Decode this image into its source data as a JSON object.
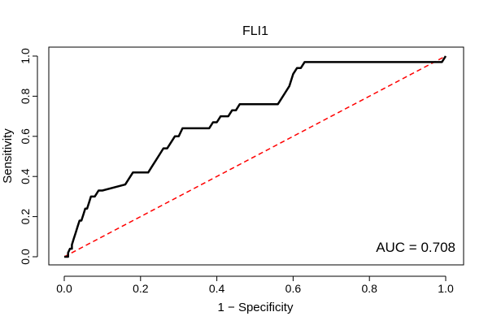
{
  "chart_data": {
    "type": "line",
    "title": "FLI1",
    "xlabel": "1 − Specificity",
    "ylabel": "Sensitivity",
    "xlim": [
      0,
      1
    ],
    "ylim": [
      0,
      1
    ],
    "xticks": [
      "0.0",
      "0.2",
      "0.4",
      "0.6",
      "0.8",
      "1.0"
    ],
    "yticks": [
      "0.0",
      "0.2",
      "0.4",
      "0.6",
      "0.8",
      "1.0"
    ],
    "annotation": "AUC = 0.708",
    "grid": false,
    "series": [
      {
        "color": "#000000",
        "style": "solid",
        "x": [
          0.0,
          0.01,
          0.01,
          0.015,
          0.02,
          0.02,
          0.025,
          0.03,
          0.035,
          0.04,
          0.045,
          0.05,
          0.055,
          0.06,
          0.065,
          0.07,
          0.08,
          0.09,
          0.1,
          0.16,
          0.17,
          0.18,
          0.22,
          0.23,
          0.24,
          0.25,
          0.26,
          0.27,
          0.28,
          0.29,
          0.3,
          0.31,
          0.38,
          0.39,
          0.4,
          0.41,
          0.42,
          0.43,
          0.44,
          0.45,
          0.46,
          0.56,
          0.57,
          0.58,
          0.59,
          0.6,
          0.61,
          0.62,
          0.63,
          0.64,
          0.98,
          0.99,
          1.0
        ],
        "y": [
          0.0,
          0.0,
          0.02,
          0.04,
          0.04,
          0.06,
          0.09,
          0.12,
          0.15,
          0.18,
          0.18,
          0.21,
          0.24,
          0.24,
          0.27,
          0.3,
          0.3,
          0.33,
          0.33,
          0.36,
          0.39,
          0.42,
          0.42,
          0.45,
          0.48,
          0.51,
          0.54,
          0.54,
          0.57,
          0.6,
          0.6,
          0.64,
          0.64,
          0.67,
          0.67,
          0.7,
          0.7,
          0.7,
          0.73,
          0.73,
          0.76,
          0.76,
          0.79,
          0.82,
          0.85,
          0.91,
          0.94,
          0.94,
          0.97,
          0.97,
          0.97,
          0.97,
          1.0
        ]
      },
      {
        "color": "#ff0000",
        "style": "dashed",
        "x": [
          0,
          1
        ],
        "y": [
          0,
          1
        ]
      }
    ]
  }
}
